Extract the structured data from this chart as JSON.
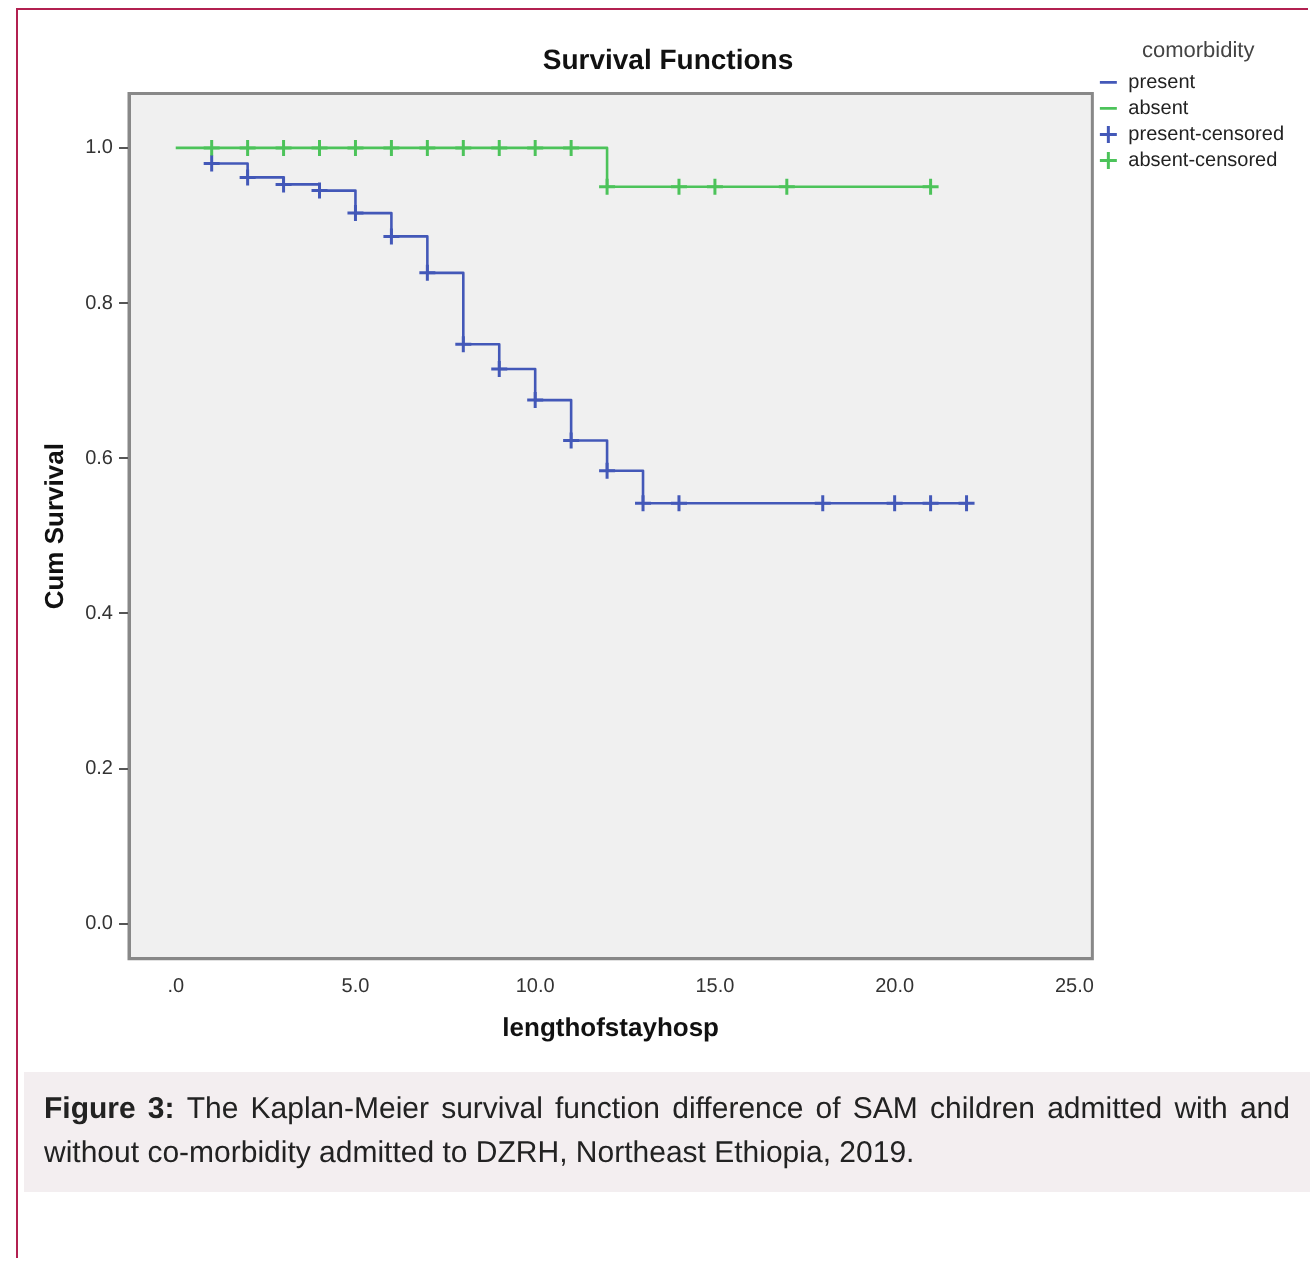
{
  "chart_data": {
    "type": "step",
    "title": "Survival Functions",
    "xlabel": "lengthofstayhosp",
    "ylabel": "Cum Survival",
    "legend_title": "comorbidity",
    "xlim": [
      -1.3,
      25.5
    ],
    "xticks": [
      {
        "value": 0,
        "label": ".0"
      },
      {
        "value": 5,
        "label": "5.0"
      },
      {
        "value": 10,
        "label": "10.0"
      },
      {
        "value": 15,
        "label": "15.0"
      },
      {
        "value": 20,
        "label": "20.0"
      },
      {
        "value": 25,
        "label": "25.0"
      }
    ],
    "ylim": [
      -0.045,
      1.07
    ],
    "yticks": [
      {
        "value": 0,
        "label": "0.0"
      },
      {
        "value": 0.2,
        "label": "0.2"
      },
      {
        "value": 0.4,
        "label": "0.4"
      },
      {
        "value": 0.6,
        "label": "0.6"
      },
      {
        "value": 0.8,
        "label": "0.8"
      },
      {
        "value": 1,
        "label": "1.0"
      }
    ],
    "grid": false,
    "legend": "top right",
    "series": [
      {
        "name": "present",
        "color": "#4358b8",
        "x": [
          1,
          2,
          3,
          4,
          5,
          6,
          7,
          8,
          9,
          10,
          11,
          12,
          13,
          22
        ],
        "values": [
          0.98,
          0.962,
          0.953,
          0.945,
          0.916,
          0.886,
          0.839,
          0.747,
          0.715,
          0.675,
          0.623,
          0.584,
          0.542,
          0.542
        ]
      },
      {
        "name": "absent",
        "color": "#4cc35a",
        "x": [
          0,
          12,
          21
        ],
        "values": [
          1,
          0.95,
          0.95
        ]
      },
      {
        "name": "present-censored",
        "type": "scatter",
        "marker": "cross",
        "color": "#4358b8",
        "x": [
          1,
          2,
          3,
          4,
          5,
          6,
          7,
          8,
          9,
          10,
          11,
          12,
          13,
          14,
          18,
          20,
          21,
          22
        ],
        "values": [
          0.98,
          0.962,
          0.953,
          0.945,
          0.916,
          0.886,
          0.839,
          0.747,
          0.715,
          0.675,
          0.623,
          0.584,
          0.542,
          0.542,
          0.542,
          0.542,
          0.542,
          0.542
        ]
      },
      {
        "name": "absent-censored",
        "type": "scatter",
        "marker": "cross",
        "color": "#4cc35a",
        "x": [
          1,
          2,
          3,
          4,
          5,
          6,
          7,
          8,
          9,
          10,
          11,
          12,
          14,
          15,
          17,
          21
        ],
        "values": [
          1,
          1,
          1,
          1,
          1,
          1,
          1,
          1,
          1,
          1,
          1,
          0.95,
          0.95,
          0.95,
          0.95,
          0.95
        ]
      }
    ],
    "annotations": [
      "Figure 3:",
      "The Kaplan-Meier survival function difference of SAM children admitted with and without co-morbidity admitted to DZRH, Northeast Ethiopia, 2019."
    ]
  }
}
